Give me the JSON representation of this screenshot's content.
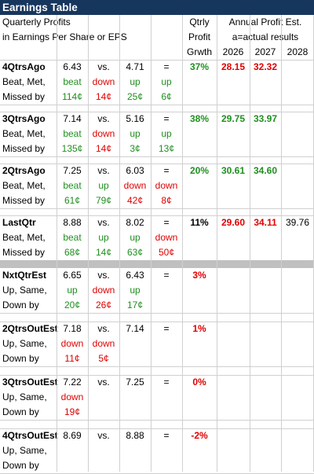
{
  "title": "Earnings Table",
  "header": {
    "line1": "Quarterly Profits",
    "line2": "in Earnings Per Share or EPS",
    "qtrly": [
      "Qtrly",
      "Profit",
      "Grwth"
    ],
    "annual_label": "Annual Profit Est.",
    "actual_note": "a=actual results",
    "years": [
      "2026",
      "2027",
      "2028"
    ]
  },
  "quarters": [
    {
      "name": "4QtrsAgo",
      "label2": "Beat, Met,",
      "label3": "Missed by",
      "eps": "6.43",
      "vs": "vs.",
      "prior": "4.71",
      "eq": "=",
      "growth": "37%",
      "growth_color": "green",
      "annual": [
        {
          "v": "28.15",
          "c": "red"
        },
        {
          "v": "32.32",
          "c": "red"
        },
        {
          "v": "",
          "c": ""
        }
      ],
      "results": [
        {
          "v": "beat",
          "c": "green"
        },
        {
          "v": "down",
          "c": "red"
        },
        {
          "v": "up",
          "c": "green"
        },
        {
          "v": "up",
          "c": "green"
        }
      ],
      "amounts": [
        {
          "v": "114¢",
          "c": "green"
        },
        {
          "v": "14¢",
          "c": "red"
        },
        {
          "v": "25¢",
          "c": "green"
        },
        {
          "v": "6¢",
          "c": "green"
        }
      ]
    },
    {
      "name": "3QtrsAgo",
      "label2": "Beat, Met,",
      "label3": "Missed by",
      "eps": "7.14",
      "vs": "vs.",
      "prior": "5.16",
      "eq": "=",
      "growth": "38%",
      "growth_color": "green",
      "annual": [
        {
          "v": "29.75",
          "c": "green"
        },
        {
          "v": "33.97",
          "c": "green"
        },
        {
          "v": "",
          "c": ""
        }
      ],
      "results": [
        {
          "v": "beat",
          "c": "green"
        },
        {
          "v": "down",
          "c": "red"
        },
        {
          "v": "up",
          "c": "green"
        },
        {
          "v": "up",
          "c": "green"
        }
      ],
      "amounts": [
        {
          "v": "135¢",
          "c": "green"
        },
        {
          "v": "14¢",
          "c": "red"
        },
        {
          "v": "3¢",
          "c": "green"
        },
        {
          "v": "13¢",
          "c": "green"
        }
      ]
    },
    {
      "name": "2QtrsAgo",
      "label2": "Beat, Met,",
      "label3": "Missed by",
      "eps": "7.25",
      "vs": "vs.",
      "prior": "6.03",
      "eq": "=",
      "growth": "20%",
      "growth_color": "green",
      "annual": [
        {
          "v": "30.61",
          "c": "green"
        },
        {
          "v": "34.60",
          "c": "green"
        },
        {
          "v": "",
          "c": ""
        }
      ],
      "results": [
        {
          "v": "beat",
          "c": "green"
        },
        {
          "v": "up",
          "c": "green"
        },
        {
          "v": "down",
          "c": "red"
        },
        {
          "v": "down",
          "c": "red"
        }
      ],
      "amounts": [
        {
          "v": "61¢",
          "c": "green"
        },
        {
          "v": "79¢",
          "c": "green"
        },
        {
          "v": "42¢",
          "c": "red"
        },
        {
          "v": "8¢",
          "c": "red"
        }
      ]
    },
    {
      "name": "LastQtr",
      "label2": "Beat, Met,",
      "label3": "Missed by",
      "eps": "8.88",
      "vs": "vs.",
      "prior": "8.02",
      "eq": "=",
      "growth": "11%",
      "growth_color": "black",
      "annual": [
        {
          "v": "29.60",
          "c": "red"
        },
        {
          "v": "34.11",
          "c": "red"
        },
        {
          "v": "39.76",
          "c": "plain"
        }
      ],
      "results": [
        {
          "v": "beat",
          "c": "green"
        },
        {
          "v": "up",
          "c": "green"
        },
        {
          "v": "up",
          "c": "green"
        },
        {
          "v": "down",
          "c": "red"
        }
      ],
      "amounts": [
        {
          "v": "68¢",
          "c": "green"
        },
        {
          "v": "14¢",
          "c": "green"
        },
        {
          "v": "63¢",
          "c": "green"
        },
        {
          "v": "50¢",
          "c": "red"
        }
      ]
    }
  ],
  "estimates": [
    {
      "name": "NxtQtrEst",
      "label2": "Up, Same,",
      "label3": "Down by",
      "eps": "6.65",
      "vs": "vs.",
      "prior": "6.43",
      "eq": "=",
      "growth": "3%",
      "growth_color": "red",
      "results": [
        {
          "v": "up",
          "c": "green"
        },
        {
          "v": "down",
          "c": "red"
        },
        {
          "v": "up",
          "c": "green"
        }
      ],
      "amounts": [
        {
          "v": "20¢",
          "c": "green"
        },
        {
          "v": "26¢",
          "c": "red"
        },
        {
          "v": "17¢",
          "c": "green"
        }
      ]
    },
    {
      "name": "2QtrsOutEst",
      "label2": "Up, Same,",
      "label3": "Down by",
      "eps": "7.18",
      "vs": "vs.",
      "prior": "7.14",
      "eq": "=",
      "growth": "1%",
      "growth_color": "red",
      "results": [
        {
          "v": "down",
          "c": "red"
        },
        {
          "v": "down",
          "c": "red"
        },
        {
          "v": "",
          "c": ""
        }
      ],
      "amounts": [
        {
          "v": "11¢",
          "c": "red"
        },
        {
          "v": "5¢",
          "c": "red"
        },
        {
          "v": "",
          "c": ""
        }
      ]
    },
    {
      "name": "3QtrsOutEst",
      "label2": "Up, Same,",
      "label3": "Down by",
      "eps": "7.22",
      "vs": "vs.",
      "prior": "7.25",
      "eq": "=",
      "growth": "0%",
      "growth_color": "red",
      "results": [
        {
          "v": "down",
          "c": "red"
        },
        {
          "v": "",
          "c": ""
        },
        {
          "v": "",
          "c": ""
        }
      ],
      "amounts": [
        {
          "v": "19¢",
          "c": "red"
        },
        {
          "v": "",
          "c": ""
        },
        {
          "v": "",
          "c": ""
        }
      ]
    },
    {
      "name": "4QtrsOutEst",
      "label2": "Up, Same,",
      "label3": "Down by",
      "eps": "8.69",
      "vs": "vs.",
      "prior": "8.88",
      "eq": "=",
      "growth": "-2%",
      "growth_color": "red",
      "results": [
        {
          "v": "",
          "c": ""
        },
        {
          "v": "",
          "c": ""
        },
        {
          "v": "",
          "c": ""
        }
      ],
      "amounts": [
        {
          "v": "",
          "c": ""
        },
        {
          "v": "",
          "c": ""
        },
        {
          "v": "",
          "c": ""
        }
      ]
    }
  ]
}
